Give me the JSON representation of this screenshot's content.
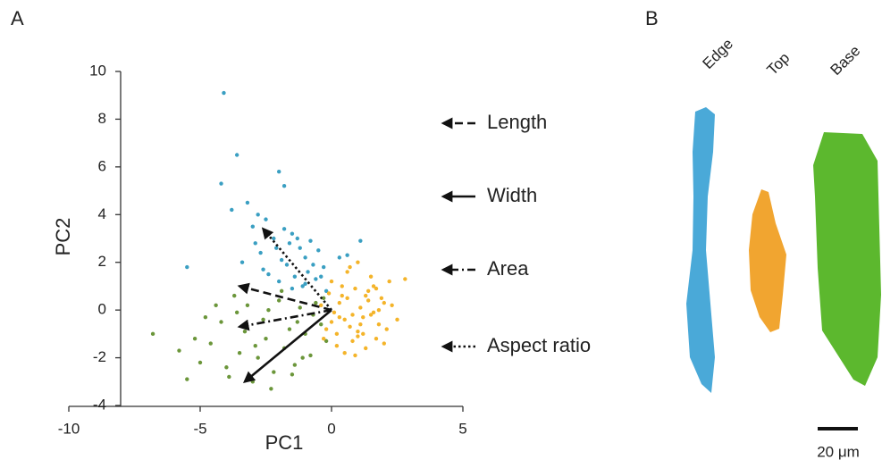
{
  "panel_labels": [
    "A",
    "B"
  ],
  "chart_data": {
    "type": "scatter",
    "xlabel": "PC1",
    "ylabel": "PC2",
    "xlim": [
      -10,
      5
    ],
    "ylim": [
      -4,
      10
    ],
    "xticks": [
      -10,
      -5,
      0,
      5
    ],
    "yticks": [
      -4,
      -2,
      0,
      2,
      4,
      6,
      8,
      10
    ],
    "series": [
      {
        "name": "Edge",
        "color": "#3a9fc2",
        "x": [
          -4.1,
          -3.6,
          -4.2,
          -2.0,
          -1.8,
          -5.5,
          -3.2,
          -2.8,
          -2.5,
          -2.2,
          -1.5,
          -1.2,
          -0.8,
          -3.0,
          -2.7,
          -1.9,
          -1.6,
          -1.0,
          -0.5,
          -0.3,
          -2.4,
          -2.0,
          -1.7,
          -1.4,
          -1.1,
          -0.9,
          -0.6,
          -0.2,
          0.3,
          -3.8,
          -3.4,
          -1.3,
          -0.7,
          -2.9,
          -2.1,
          -1.8,
          -1.0,
          -0.4,
          -1.5,
          -2.6,
          1.1,
          0.6
        ],
        "y": [
          9.1,
          6.5,
          5.3,
          5.8,
          5.2,
          1.8,
          4.5,
          4.0,
          3.8,
          3.0,
          3.2,
          2.6,
          2.9,
          3.5,
          2.4,
          2.1,
          2.8,
          2.2,
          2.5,
          1.8,
          1.5,
          1.2,
          1.9,
          1.4,
          1.0,
          1.6,
          1.3,
          0.8,
          2.2,
          4.2,
          2.0,
          3.0,
          1.9,
          2.8,
          2.6,
          3.4,
          1.1,
          1.4,
          0.9,
          1.7,
          2.9,
          2.3
        ]
      },
      {
        "name": "Base",
        "color": "#6b963a",
        "x": [
          -6.8,
          -5.8,
          -5.5,
          -5.0,
          -4.6,
          -4.2,
          -3.9,
          -3.5,
          -3.2,
          -3.0,
          -2.8,
          -2.5,
          -2.2,
          -2.0,
          -1.8,
          -1.6,
          -1.4,
          -1.2,
          -1.0,
          -0.8,
          -0.6,
          -0.4,
          -0.2,
          -4.8,
          -4.4,
          -3.7,
          -3.3,
          -2.6,
          -2.3,
          -1.9,
          -1.5,
          -1.1,
          -0.7,
          -0.3,
          -5.2,
          -4.0,
          -3.6,
          -2.9,
          -2.4,
          -1.3
        ],
        "y": [
          -1.0,
          -1.7,
          -2.9,
          -2.2,
          -1.4,
          -0.5,
          -2.8,
          -1.8,
          0.2,
          -3.0,
          -2.0,
          -1.2,
          -2.6,
          0.4,
          -1.6,
          -0.8,
          -2.3,
          0.1,
          -1.0,
          -1.9,
          0.3,
          -0.6,
          -1.3,
          -0.3,
          0.2,
          0.6,
          -0.9,
          -0.4,
          -3.3,
          0.8,
          -2.7,
          -2.0,
          -0.2,
          0.5,
          -1.2,
          -2.4,
          -0.1,
          -1.5,
          0.0,
          -0.5
        ]
      },
      {
        "name": "Top",
        "color": "#f4b42a",
        "x": [
          -0.4,
          -0.2,
          0.0,
          0.2,
          0.4,
          0.6,
          0.8,
          1.0,
          1.2,
          1.4,
          1.6,
          1.8,
          2.0,
          2.2,
          2.5,
          2.8,
          -0.3,
          0.1,
          0.5,
          0.9,
          1.3,
          1.7,
          2.1,
          0.3,
          0.7,
          1.1,
          1.5,
          1.9,
          0.0,
          0.4,
          0.8,
          1.2,
          1.6,
          2.0,
          -0.1,
          0.6,
          1.0,
          1.4,
          1.8,
          0.2,
          0.9,
          1.3,
          0.5,
          1.1,
          1.5,
          0.7,
          1.7,
          0.3,
          2.3,
          1.0
        ],
        "y": [
          0.2,
          -0.8,
          1.2,
          -1.5,
          0.6,
          1.6,
          -0.2,
          2.0,
          -1.0,
          0.4,
          1.0,
          -0.6,
          0.3,
          1.2,
          -0.4,
          1.3,
          -1.2,
          -0.1,
          -1.8,
          0.9,
          -1.6,
          -1.2,
          -0.8,
          0.3,
          -0.7,
          0.1,
          1.4,
          0.5,
          -0.5,
          1.0,
          -1.3,
          -0.3,
          -0.1,
          -1.4,
          0.7,
          0.5,
          -0.9,
          0.8,
          0.0,
          -1.0,
          -1.9,
          0.6,
          -0.4,
          -0.6,
          -0.2,
          1.8,
          0.9,
          -0.3,
          0.2,
          -1.1
        ]
      }
    ],
    "loadings": [
      {
        "name": "Length",
        "x": -3.5,
        "y": 1.0,
        "style": "dashed"
      },
      {
        "name": "Width",
        "x": -3.3,
        "y": -3.0,
        "style": "solid"
      },
      {
        "name": "Area",
        "x": -3.5,
        "y": -0.7,
        "style": "dashdot"
      },
      {
        "name": "Aspect ratio",
        "x": -2.6,
        "y": 3.4,
        "style": "dotted"
      }
    ]
  },
  "panel_b": {
    "labels": [
      "Edge",
      "Top",
      "Base"
    ],
    "scale_bar": "20 μm"
  }
}
